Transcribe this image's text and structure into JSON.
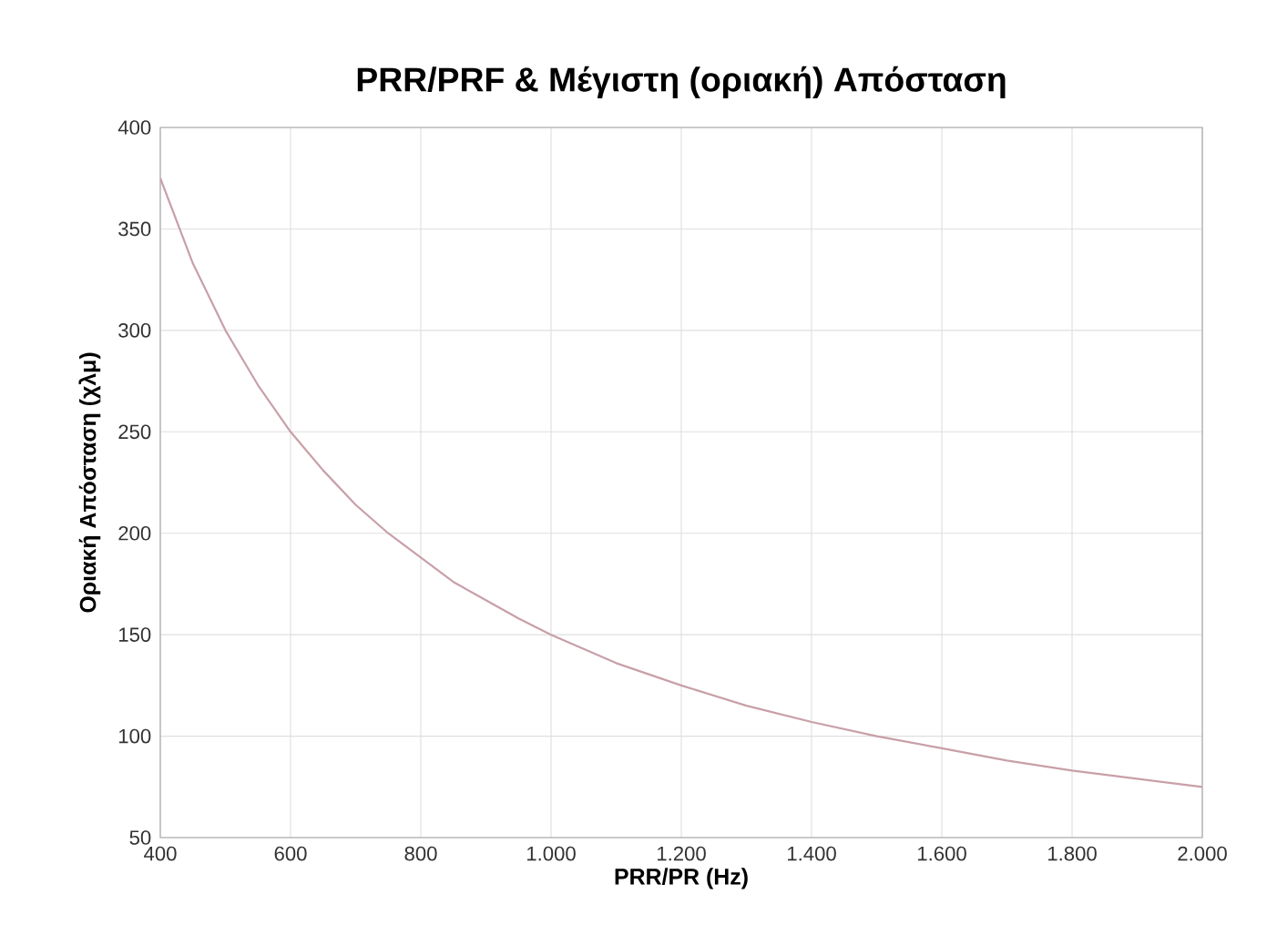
{
  "chart_data": {
    "type": "line",
    "title": "PRR/PRF  &   Μέγιστη (οριακή) Απόσταση",
    "xlabel": "PRR/PR (Hz)",
    "ylabel": "Οριακή Απόσταση (χλμ)",
    "x": [
      400,
      450,
      500,
      550,
      600,
      650,
      700,
      750,
      800,
      850,
      900,
      950,
      1000,
      1100,
      1200,
      1300,
      1400,
      1500,
      1600,
      1700,
      1800,
      1900,
      2000
    ],
    "series": [
      {
        "color": "#c8a0a8",
        "values": [
          375,
          333,
          300,
          273,
          250,
          231,
          214,
          200,
          188,
          176,
          167,
          158,
          150,
          136,
          125,
          115,
          107,
          100,
          94,
          88,
          83,
          79,
          75
        ]
      }
    ],
    "xlim": [
      400,
      2000
    ],
    "ylim": [
      50,
      400
    ],
    "xticks": [
      400,
      600,
      800,
      {
        "value": 1000,
        "label": "1.000"
      },
      {
        "value": 1200,
        "label": "1.200"
      },
      {
        "value": 1400,
        "label": "1.400"
      },
      {
        "value": 1600,
        "label": "1.600"
      },
      {
        "value": 1800,
        "label": "1.800"
      },
      {
        "value": 2000,
        "label": "2.000"
      }
    ],
    "yticks": [
      50,
      100,
      150,
      200,
      250,
      300,
      350,
      400
    ],
    "grid": true,
    "marker": "none",
    "line_style": "solid"
  }
}
